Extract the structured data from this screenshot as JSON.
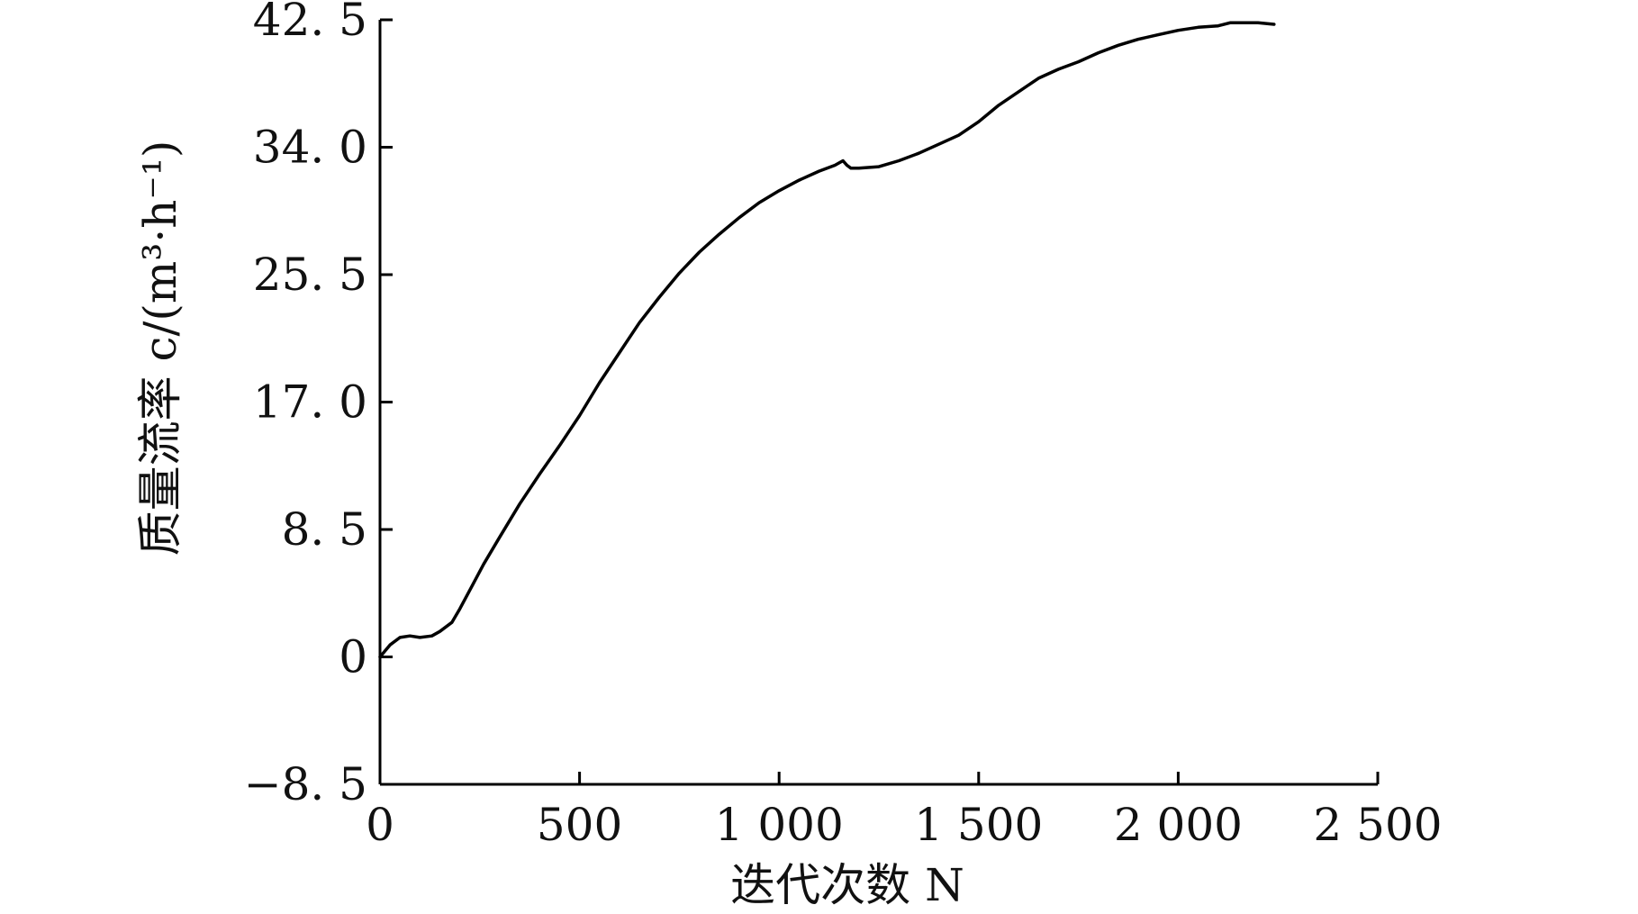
{
  "chart_data": {
    "type": "line",
    "title": "",
    "xlabel": "迭代次数 N",
    "ylabel": "质量流率 c/(m³·h⁻¹)",
    "xlim": [
      0,
      2500
    ],
    "ylim": [
      -8.5,
      42.5
    ],
    "x_ticks": [
      0,
      500,
      1000,
      1500,
      2000,
      2500
    ],
    "x_tick_labels": [
      "0",
      "500",
      "1 000",
      "1 500",
      "2 000",
      "2 500"
    ],
    "y_ticks": [
      -8.5,
      0,
      8.5,
      17.0,
      25.5,
      34.0,
      42.5
    ],
    "y_tick_labels": [
      "−8. 5",
      "0",
      "8. 5",
      "17. 0",
      "25. 5",
      "34. 0",
      "42. 5"
    ],
    "grid": false,
    "series": [
      {
        "color": "#000000",
        "x": [
          0,
          25,
          50,
          75,
          100,
          130,
          150,
          180,
          200,
          230,
          260,
          300,
          350,
          400,
          450,
          500,
          550,
          600,
          650,
          700,
          750,
          800,
          850,
          900,
          950,
          1000,
          1050,
          1100,
          1140,
          1160,
          1170,
          1180,
          1200,
          1250,
          1300,
          1350,
          1400,
          1450,
          1500,
          1550,
          1600,
          1650,
          1700,
          1750,
          1800,
          1850,
          1900,
          1950,
          2000,
          2050,
          2100,
          2130,
          2160,
          2200,
          2240
        ],
        "y": [
          0.0,
          0.8,
          1.3,
          1.4,
          1.3,
          1.4,
          1.7,
          2.3,
          3.2,
          4.7,
          6.2,
          8.0,
          10.2,
          12.2,
          14.1,
          16.1,
          18.3,
          20.3,
          22.3,
          24.0,
          25.6,
          27.0,
          28.2,
          29.3,
          30.3,
          31.1,
          31.8,
          32.4,
          32.8,
          33.1,
          32.8,
          32.6,
          32.6,
          32.7,
          33.1,
          33.6,
          34.2,
          34.8,
          35.7,
          36.8,
          37.7,
          38.6,
          39.2,
          39.7,
          40.3,
          40.8,
          41.2,
          41.5,
          41.8,
          42.0,
          42.1,
          42.3,
          42.3,
          42.3,
          42.2
        ]
      }
    ]
  }
}
